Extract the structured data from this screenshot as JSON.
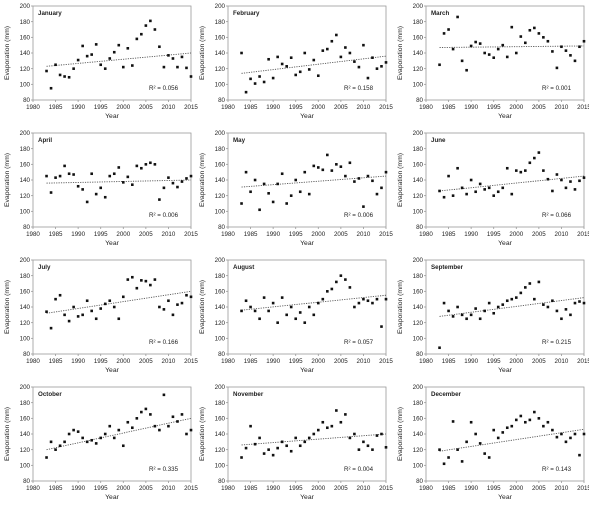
{
  "figure": {
    "ylabel": "Evaporation (mm)",
    "xlabel": "Year",
    "r2_prefix": "R² = ",
    "xticks": [
      1980,
      1985,
      1990,
      1995,
      2000,
      2005,
      2010,
      2015
    ],
    "xlim": [
      1980,
      2015
    ],
    "colors": {
      "points": "#111111",
      "trend": "#555555",
      "axis": "#999999"
    }
  },
  "chart_data": [
    {
      "type": "scatter",
      "title": "January",
      "r2": "0.056",
      "ylim": [
        80,
        200
      ],
      "yticks": [
        80,
        100,
        120,
        140,
        160,
        180,
        200
      ],
      "x": [
        1983,
        1984,
        1985,
        1986,
        1987,
        1988,
        1989,
        1990,
        1991,
        1992,
        1993,
        1994,
        1995,
        1996,
        1997,
        1998,
        1999,
        2000,
        2001,
        2002,
        2003,
        2004,
        2005,
        2006,
        2007,
        2008,
        2009,
        2010,
        2011,
        2012,
        2013,
        2014,
        2015
      ],
      "y": [
        117,
        95,
        125,
        112,
        110,
        109,
        120,
        131,
        149,
        136,
        138,
        151,
        125,
        120,
        133,
        141,
        150,
        122,
        146,
        124,
        158,
        164,
        175,
        181,
        170,
        148,
        122,
        137,
        133,
        122,
        135,
        121,
        110
      ],
      "trend": [
        123,
        140
      ]
    },
    {
      "type": "scatter",
      "title": "February",
      "r2": "0.158",
      "ylim": [
        80,
        200
      ],
      "yticks": [
        80,
        100,
        120,
        140,
        160,
        180,
        200
      ],
      "x": [
        1983,
        1984,
        1985,
        1986,
        1987,
        1988,
        1989,
        1990,
        1991,
        1992,
        1993,
        1994,
        1995,
        1996,
        1997,
        1998,
        1999,
        2000,
        2001,
        2002,
        2003,
        2004,
        2005,
        2006,
        2007,
        2008,
        2009,
        2010,
        2011,
        2012,
        2013,
        2014,
        2015
      ],
      "y": [
        140,
        90,
        107,
        101,
        110,
        103,
        132,
        108,
        135,
        126,
        123,
        134,
        112,
        116,
        140,
        119,
        131,
        111,
        143,
        145,
        155,
        163,
        135,
        147,
        140,
        129,
        122,
        150,
        108,
        134,
        120,
        123,
        128
      ],
      "trend": [
        114,
        136
      ]
    },
    {
      "type": "scatter",
      "title": "March",
      "r2": "0.001",
      "ylim": [
        80,
        200
      ],
      "yticks": [
        80,
        100,
        120,
        140,
        160,
        180,
        200
      ],
      "x": [
        1983,
        1984,
        1985,
        1986,
        1987,
        1988,
        1989,
        1990,
        1991,
        1992,
        1993,
        1994,
        1995,
        1996,
        1997,
        1998,
        1999,
        2000,
        2001,
        2002,
        2003,
        2004,
        2005,
        2006,
        2007,
        2008,
        2009,
        2010,
        2011,
        2012,
        2013,
        2014,
        2015
      ],
      "y": [
        125,
        165,
        170,
        145,
        186,
        130,
        118,
        149,
        154,
        152,
        140,
        138,
        134,
        145,
        150,
        135,
        173,
        140,
        161,
        153,
        169,
        172,
        165,
        160,
        155,
        142,
        121,
        148,
        143,
        137,
        130,
        148,
        155
      ],
      "trend": [
        147,
        149
      ]
    },
    {
      "type": "scatter",
      "title": "April",
      "r2": "0.006",
      "ylim": [
        80,
        200
      ],
      "yticks": [
        80,
        100,
        120,
        140,
        160,
        180,
        200
      ],
      "x": [
        1983,
        1984,
        1985,
        1986,
        1987,
        1988,
        1989,
        1990,
        1991,
        1992,
        1993,
        1994,
        1995,
        1996,
        1997,
        1998,
        1999,
        2000,
        2001,
        2002,
        2003,
        2004,
        2005,
        2006,
        2007,
        2008,
        2009,
        2010,
        2011,
        2012,
        2013,
        2014,
        2015
      ],
      "y": [
        145,
        124,
        143,
        145,
        158,
        148,
        147,
        132,
        128,
        112,
        148,
        122,
        130,
        118,
        145,
        148,
        156,
        137,
        144,
        134,
        158,
        155,
        160,
        162,
        160,
        115,
        130,
        143,
        136,
        131,
        138,
        142,
        145
      ],
      "trend": [
        136,
        140
      ]
    },
    {
      "type": "scatter",
      "title": "May",
      "r2": "0.006",
      "ylim": [
        80,
        200
      ],
      "yticks": [
        80,
        100,
        120,
        140,
        160,
        180,
        200
      ],
      "x": [
        1983,
        1984,
        1985,
        1986,
        1987,
        1988,
        1989,
        1990,
        1991,
        1992,
        1993,
        1994,
        1995,
        1996,
        1997,
        1998,
        1999,
        2000,
        2001,
        2002,
        2003,
        2004,
        2005,
        2006,
        2007,
        2008,
        2009,
        2010,
        2011,
        2012,
        2013,
        2014,
        2015
      ],
      "y": [
        110,
        150,
        125,
        140,
        102,
        135,
        123,
        112,
        135,
        148,
        110,
        120,
        140,
        125,
        150,
        122,
        158,
        156,
        153,
        172,
        152,
        160,
        157,
        145,
        162,
        138,
        142,
        106,
        145,
        139,
        122,
        130,
        150
      ],
      "trend": [
        131,
        145
      ]
    },
    {
      "type": "scatter",
      "title": "June",
      "r2": "0.066",
      "ylim": [
        80,
        200
      ],
      "yticks": [
        80,
        100,
        120,
        140,
        160,
        180,
        200
      ],
      "x": [
        1983,
        1984,
        1985,
        1986,
        1987,
        1988,
        1989,
        1990,
        1991,
        1992,
        1993,
        1994,
        1995,
        1996,
        1997,
        1998,
        1999,
        2000,
        2001,
        2002,
        2003,
        2004,
        2005,
        2006,
        2007,
        2008,
        2009,
        2010,
        2011,
        2012,
        2013,
        2014,
        2015
      ],
      "y": [
        126,
        118,
        145,
        120,
        155,
        130,
        122,
        140,
        125,
        135,
        128,
        130,
        120,
        125,
        130,
        155,
        122,
        152,
        150,
        152,
        162,
        168,
        175,
        152,
        141,
        126,
        147,
        140,
        130,
        138,
        128,
        139,
        143
      ],
      "trend": [
        126,
        145
      ]
    },
    {
      "type": "scatter",
      "title": "July",
      "r2": "0.166",
      "ylim": [
        80,
        200
      ],
      "yticks": [
        80,
        100,
        120,
        140,
        160,
        180,
        200
      ],
      "x": [
        1983,
        1984,
        1985,
        1986,
        1987,
        1988,
        1989,
        1990,
        1991,
        1992,
        1993,
        1994,
        1995,
        1996,
        1997,
        1998,
        1999,
        2000,
        2001,
        2002,
        2003,
        2004,
        2005,
        2006,
        2007,
        2008,
        2009,
        2010,
        2011,
        2012,
        2013,
        2014,
        2015
      ],
      "y": [
        134,
        113,
        150,
        155,
        130,
        122,
        140,
        128,
        130,
        148,
        135,
        125,
        138,
        144,
        148,
        140,
        125,
        153,
        175,
        178,
        164,
        174,
        173,
        168,
        175,
        140,
        137,
        148,
        130,
        143,
        145,
        155,
        153
      ],
      "trend": [
        132,
        160
      ]
    },
    {
      "type": "scatter",
      "title": "August",
      "r2": "0.057",
      "ylim": [
        80,
        200
      ],
      "yticks": [
        80,
        100,
        120,
        140,
        160,
        180,
        200
      ],
      "x": [
        1983,
        1984,
        1985,
        1986,
        1987,
        1988,
        1989,
        1990,
        1991,
        1992,
        1993,
        1994,
        1995,
        1996,
        1997,
        1998,
        1999,
        2000,
        2001,
        2002,
        2003,
        2004,
        2005,
        2006,
        2007,
        2008,
        2009,
        2010,
        2011,
        2012,
        2013,
        2014,
        2015
      ],
      "y": [
        135,
        148,
        140,
        135,
        125,
        152,
        135,
        145,
        120,
        152,
        130,
        140,
        125,
        133,
        120,
        140,
        130,
        145,
        150,
        160,
        163,
        172,
        180,
        175,
        165,
        140,
        145,
        150,
        148,
        145,
        150,
        115,
        150
      ],
      "trend": [
        136,
        155
      ]
    },
    {
      "type": "scatter",
      "title": "September",
      "r2": "0.215",
      "ylim": [
        80,
        200
      ],
      "yticks": [
        80,
        100,
        120,
        140,
        160,
        180,
        200
      ],
      "x": [
        1983,
        1984,
        1985,
        1986,
        1987,
        1988,
        1989,
        1990,
        1991,
        1992,
        1993,
        1994,
        1995,
        1996,
        1997,
        1998,
        1999,
        2000,
        2001,
        2002,
        2003,
        2004,
        2005,
        2006,
        2007,
        2008,
        2009,
        2010,
        2011,
        2012,
        2013,
        2014,
        2015
      ],
      "y": [
        88,
        145,
        135,
        128,
        140,
        130,
        125,
        130,
        138,
        125,
        135,
        145,
        132,
        140,
        143,
        148,
        150,
        152,
        158,
        165,
        170,
        150,
        172,
        143,
        140,
        148,
        135,
        125,
        137,
        130,
        145,
        147,
        145
      ],
      "trend": [
        128,
        152
      ]
    },
    {
      "type": "scatter",
      "title": "October",
      "r2": "0.335",
      "ylim": [
        80,
        200
      ],
      "yticks": [
        80,
        100,
        120,
        140,
        160,
        180,
        200
      ],
      "x": [
        1983,
        1984,
        1985,
        1986,
        1987,
        1988,
        1989,
        1990,
        1991,
        1992,
        1993,
        1994,
        1995,
        1996,
        1997,
        1998,
        1999,
        2000,
        2001,
        2002,
        2003,
        2004,
        2005,
        2006,
        2007,
        2008,
        2009,
        2010,
        2011,
        2012,
        2013,
        2014,
        2015
      ],
      "y": [
        110,
        130,
        120,
        125,
        130,
        140,
        145,
        143,
        135,
        130,
        132,
        128,
        135,
        140,
        150,
        135,
        145,
        125,
        155,
        148,
        160,
        168,
        172,
        165,
        150,
        145,
        190,
        150,
        162,
        156,
        165,
        140,
        145
      ],
      "trend": [
        120,
        160
      ]
    },
    {
      "type": "scatter",
      "title": "November",
      "r2": "0.004",
      "ylim": [
        80,
        200
      ],
      "yticks": [
        80,
        100,
        120,
        140,
        160,
        180,
        200
      ],
      "x": [
        1983,
        1984,
        1985,
        1986,
        1987,
        1988,
        1989,
        1990,
        1991,
        1992,
        1993,
        1994,
        1995,
        1996,
        1997,
        1998,
        1999,
        2000,
        2001,
        2002,
        2003,
        2004,
        2005,
        2006,
        2007,
        2008,
        2009,
        2010,
        2011,
        2012,
        2013,
        2014,
        2015
      ],
      "y": [
        110,
        122,
        150,
        127,
        135,
        115,
        120,
        113,
        122,
        130,
        125,
        118,
        135,
        125,
        130,
        135,
        140,
        145,
        155,
        148,
        150,
        170,
        155,
        165,
        135,
        140,
        120,
        130,
        125,
        120,
        138,
        140,
        123
      ],
      "trend": [
        126,
        140
      ]
    },
    {
      "type": "scatter",
      "title": "December",
      "r2": "0.143",
      "ylim": [
        80,
        200
      ],
      "yticks": [
        80,
        100,
        120,
        140,
        160,
        180,
        200
      ],
      "x": [
        1983,
        1984,
        1985,
        1986,
        1987,
        1988,
        1989,
        1990,
        1991,
        1992,
        1993,
        1994,
        1995,
        1996,
        1997,
        1998,
        1999,
        2000,
        2001,
        2002,
        2003,
        2004,
        2005,
        2006,
        2007,
        2008,
        2009,
        2010,
        2011,
        2012,
        2013,
        2014,
        2015
      ],
      "y": [
        120,
        102,
        110,
        156,
        120,
        105,
        130,
        155,
        140,
        128,
        115,
        110,
        145,
        135,
        142,
        148,
        150,
        158,
        163,
        155,
        158,
        168,
        160,
        150,
        155,
        145,
        136,
        140,
        130,
        135,
        140,
        113,
        140
      ],
      "trend": [
        118,
        146
      ]
    }
  ]
}
